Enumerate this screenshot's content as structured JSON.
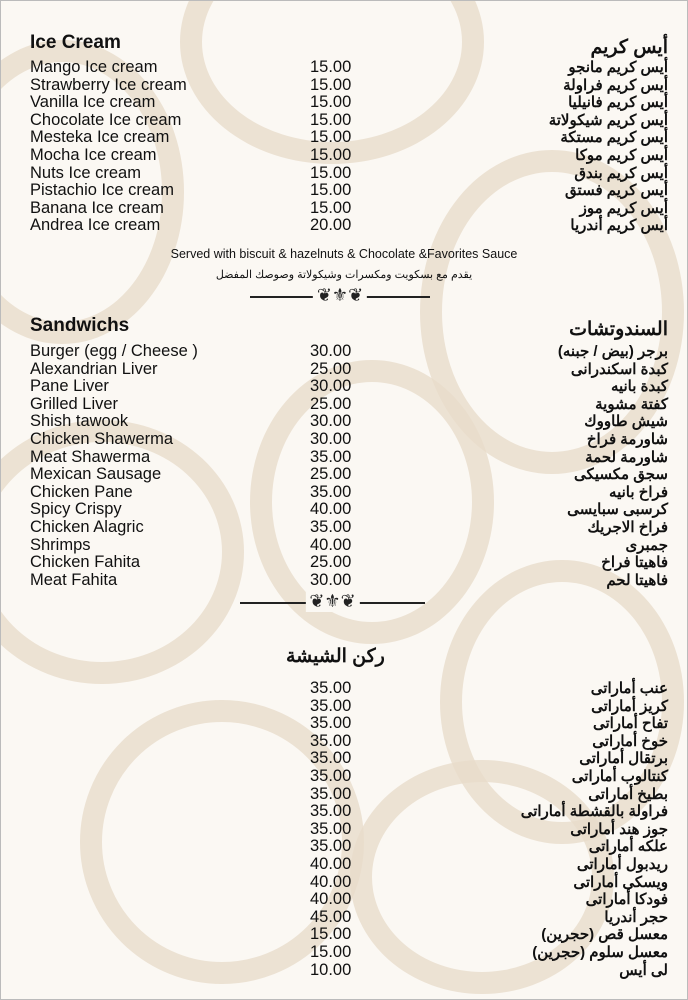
{
  "ice_cream": {
    "title_en": "Ice Cream",
    "title_ar": "أيس كريم",
    "items": [
      {
        "en": "Mango Ice cream",
        "price": "15.00",
        "ar": "أيس كريم مانجو"
      },
      {
        "en": "Strawberry Ice cream",
        "price": "15.00",
        "ar": "أيس كريم فراولة"
      },
      {
        "en": "Vanilla Ice cream",
        "price": "15.00",
        "ar": "أيس كريم فانيليا"
      },
      {
        "en": "Chocolate Ice cream",
        "price": "15.00",
        "ar": "أيس كريم شيكولاتة"
      },
      {
        "en": "Mesteka Ice cream",
        "price": "15.00",
        "ar": "أيس كريم مستكة"
      },
      {
        "en": "Mocha Ice cream",
        "price": "15.00",
        "ar": "أيس كريم موكا"
      },
      {
        "en": "Nuts Ice cream",
        "price": "15.00",
        "ar": "أيس كريم بندق"
      },
      {
        "en": "Pistachio Ice cream",
        "price": "15.00",
        "ar": "أيس كريم فستق"
      },
      {
        "en": "Banana Ice cream",
        "price": "15.00",
        "ar": "أيس كريم موز"
      },
      {
        "en": "Andrea Ice cream",
        "price": "20.00",
        "ar": "أيس كريم أندريا"
      }
    ],
    "note_en": "Served with biscuit & hazelnuts & Chocolate &Favorites Sauce",
    "note_ar": "يقدم مع بسكويت ومكسرات وشيكولاتة وصوصك المفضل"
  },
  "sandwiches": {
    "title_en": "Sandwichs",
    "title_ar": "السندوتشات",
    "items": [
      {
        "en": "Burger (egg / Cheese )",
        "price": "30.00",
        "ar": "برجر (بيض / جبنه)"
      },
      {
        "en": "Alexandrian Liver",
        "price": "25.00",
        "ar": "كبدة اسكندرانى"
      },
      {
        "en": "Pane Liver",
        "price": "30.00",
        "ar": "كبدة بانيه"
      },
      {
        "en": "Grilled Liver",
        "price": "25.00",
        "ar": "كفتة مشوية"
      },
      {
        "en": "Shish tawook",
        "price": "30.00",
        "ar": "شيش طاووك"
      },
      {
        "en": "Chicken Shawerma",
        "price": "30.00",
        "ar": "شاورمة فراخ"
      },
      {
        "en": "Meat Shawerma",
        "price": "35.00",
        "ar": "شاورمة لحمة"
      },
      {
        "en": "Mexican Sausage",
        "price": "25.00",
        "ar": "سجق مكسيكى"
      },
      {
        "en": "Chicken Pane",
        "price": "35.00",
        "ar": "فراخ بانيه"
      },
      {
        "en": "Spicy Crispy",
        "price": "40.00",
        "ar": "كرسبى سبايسى"
      },
      {
        "en": "Chicken Alagric",
        "price": "35.00",
        "ar": "فراخ الاجريك"
      },
      {
        "en": "Shrimps",
        "price": "40.00",
        "ar": "جمبرى"
      },
      {
        "en": "Chicken Fahita",
        "price": "25.00",
        "ar": "فاهيتا فراخ"
      },
      {
        "en": "Meat Fahita",
        "price": "30.00",
        "ar": "فاهيتا لحم"
      }
    ]
  },
  "shisha": {
    "title_ar": "ركن الشيشة",
    "items": [
      {
        "price": "35.00",
        "ar": "عنب أماراتى"
      },
      {
        "price": "35.00",
        "ar": "كريز أماراتى"
      },
      {
        "price": "35.00",
        "ar": "تفاح أماراتى"
      },
      {
        "price": "35.00",
        "ar": "خوخ أماراتى"
      },
      {
        "price": "35.00",
        "ar": "برتقال أماراتى"
      },
      {
        "price": "35.00",
        "ar": "كنتالوب أماراتى"
      },
      {
        "price": "35.00",
        "ar": "بطيخ أماراتى"
      },
      {
        "price": "35.00",
        "ar": "فراولة بالقشطة أماراتى"
      },
      {
        "price": "35.00",
        "ar": "جوز هند أماراتى"
      },
      {
        "price": "35.00",
        "ar": "علكه أماراتى"
      },
      {
        "price": "40.00",
        "ar": "ريدبول أماراتى"
      },
      {
        "price": "40.00",
        "ar": "ويسكى أماراتى"
      },
      {
        "price": "40.00",
        "ar": "فودكا أماراتى"
      },
      {
        "price": "45.00",
        "ar": "حجر أندريا"
      },
      {
        "price": "15.00",
        "ar": "معسل قص (حجرين)"
      },
      {
        "price": "15.00",
        "ar": "معسل سلوم (حجرين)"
      },
      {
        "price": "10.00",
        "ar": "لى أيس"
      }
    ]
  },
  "colors": {
    "background": "#fbf8f3",
    "pattern": "#e8dccb",
    "text": "#111111"
  }
}
